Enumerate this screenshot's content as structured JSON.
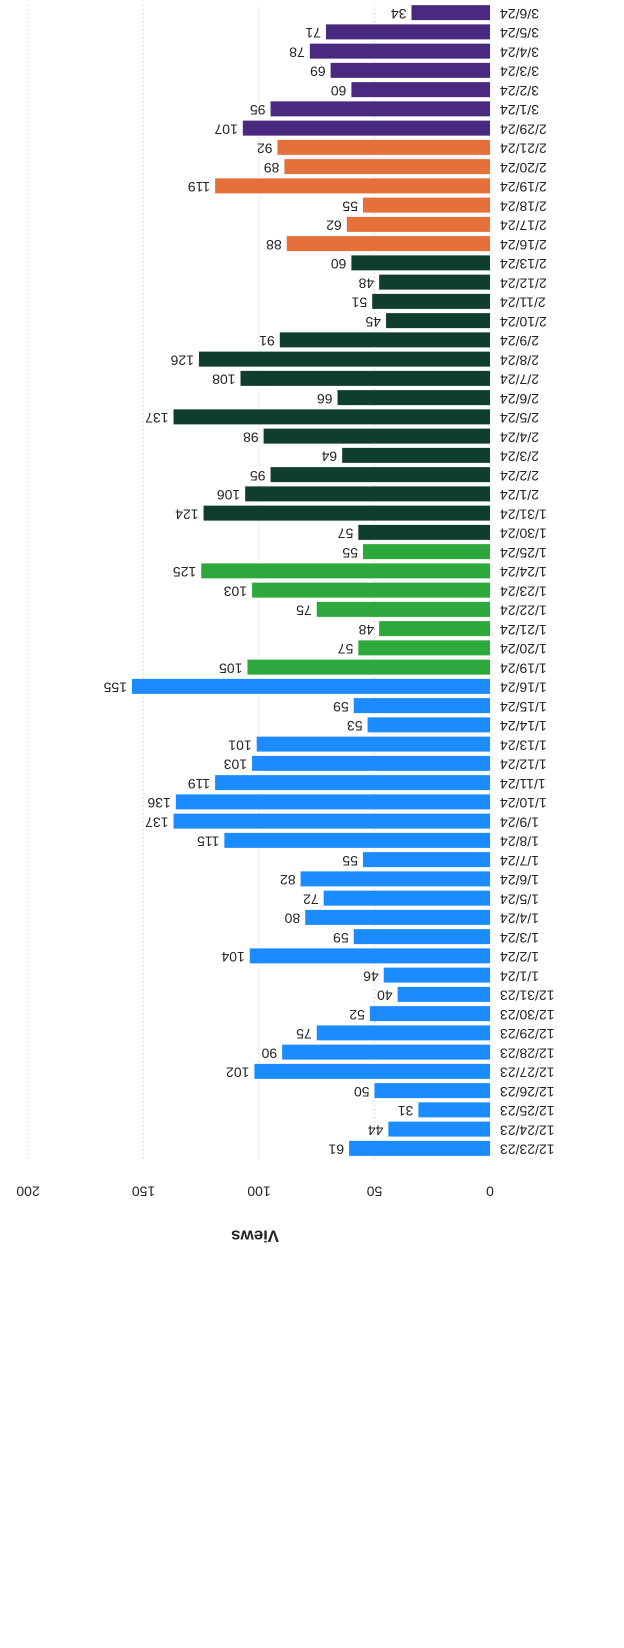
{
  "chart_data": {
    "type": "bar",
    "y_label": "Views",
    "categories": [
      "12/23/23",
      "12/24/23",
      "12/25/23",
      "12/26/23",
      "12/27/23",
      "12/28/23",
      "12/29/23",
      "12/30/23",
      "12/31/23",
      "1/1/24",
      "1/2/24",
      "1/3/24",
      "1/4/24",
      "1/5/24",
      "1/6/24",
      "1/7/24",
      "1/8/24",
      "1/9/24",
      "1/10/24",
      "1/11/24",
      "1/12/24",
      "1/13/24",
      "1/14/24",
      "1/15/24",
      "1/16/24",
      "1/19/24",
      "1/20/24",
      "1/21/24",
      "1/22/24",
      "1/23/24",
      "1/24/24",
      "1/25/24",
      "1/30/24",
      "1/31/24",
      "2/1/24",
      "2/2/24",
      "2/3/24",
      "2/4/24",
      "2/5/24",
      "2/6/24",
      "2/7/24",
      "2/8/24",
      "2/9/24",
      "2/10/24",
      "2/11/24",
      "2/12/24",
      "2/13/24",
      "2/16/24",
      "2/17/24",
      "2/18/24",
      "2/19/24",
      "2/20/24",
      "2/21/24",
      "2/29/24",
      "3/1/24",
      "3/2/24",
      "3/3/24",
      "3/4/24",
      "3/5/24",
      "3/6/24"
    ],
    "values": [
      61,
      44,
      31,
      50,
      102,
      90,
      75,
      52,
      40,
      46,
      104,
      59,
      80,
      72,
      82,
      55,
      115,
      137,
      136,
      119,
      103,
      101,
      53,
      59,
      155,
      105,
      57,
      48,
      75,
      103,
      125,
      55,
      57,
      124,
      106,
      95,
      64,
      98,
      137,
      66,
      108,
      126,
      91,
      45,
      51,
      48,
      60,
      88,
      62,
      55,
      119,
      89,
      92,
      107,
      95,
      60,
      69,
      78,
      71,
      34
    ],
    "colors": [
      "#1a8cff",
      "#1a8cff",
      "#1a8cff",
      "#1a8cff",
      "#1a8cff",
      "#1a8cff",
      "#1a8cff",
      "#1a8cff",
      "#1a8cff",
      "#1a8cff",
      "#1a8cff",
      "#1a8cff",
      "#1a8cff",
      "#1a8cff",
      "#1a8cff",
      "#1a8cff",
      "#1a8cff",
      "#1a8cff",
      "#1a8cff",
      "#1a8cff",
      "#1a8cff",
      "#1a8cff",
      "#1a8cff",
      "#1a8cff",
      "#1a8cff",
      "#2ca83c",
      "#2ca83c",
      "#2ca83c",
      "#2ca83c",
      "#2ca83c",
      "#2ca83c",
      "#2ca83c",
      "#0f3d30",
      "#0f3d30",
      "#0f3d30",
      "#0f3d30",
      "#0f3d30",
      "#0f3d30",
      "#0f3d30",
      "#0f3d30",
      "#0f3d30",
      "#0f3d30",
      "#0f3d30",
      "#0f3d30",
      "#0f3d30",
      "#0f3d30",
      "#0f3d30",
      "#e6703a",
      "#e6703a",
      "#e6703a",
      "#e6703a",
      "#e6703a",
      "#e6703a",
      "#4a2a80",
      "#4a2a80",
      "#4a2a80",
      "#4a2a80",
      "#4a2a80",
      "#4a2a80",
      "#4a2a80"
    ],
    "ylim": [
      0,
      200
    ],
    "yticks": [
      0,
      50,
      100,
      150,
      200
    ],
    "grid": true
  }
}
